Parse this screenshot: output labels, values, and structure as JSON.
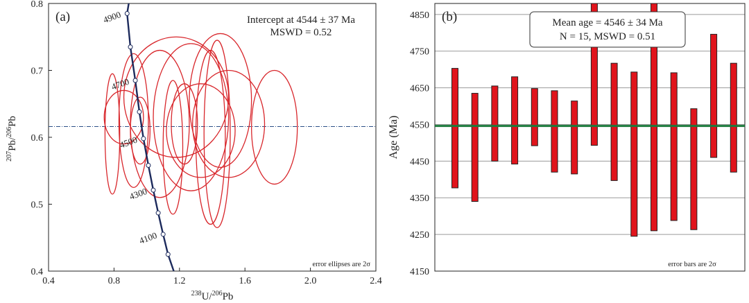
{
  "chart_data": [
    {
      "panel_label": "(a)",
      "type": "scatter",
      "subtype": "concordia-ellipses",
      "annotation": [
        "Intercept at 4544 ± 37 Ma",
        "MSWD = 0.52"
      ],
      "note": "error ellipses are 2σ",
      "xlabel": {
        "pre": "238",
        "a": "U/",
        "sup": "206",
        "b": "Pb"
      },
      "ylabel": {
        "sup1": "207",
        "a": "Pb/",
        "sup2": "206",
        "b": "Pb"
      },
      "xlim": [
        0.4,
        2.4
      ],
      "ylim": [
        0.4,
        0.8
      ],
      "xticks": [
        "0.4",
        "0.8",
        "1.2",
        "1.6",
        "2.0",
        "2.4"
      ],
      "yticks": [
        "0.4",
        "0.5",
        "0.6",
        "0.7",
        "0.8"
      ],
      "intercept_line_y": 0.616,
      "concordia": [
        [
          0.89,
          0.8
        ],
        [
          0.88,
          0.785
        ],
        [
          0.9,
          0.735
        ],
        [
          0.93,
          0.685
        ],
        [
          0.955,
          0.638
        ],
        [
          0.98,
          0.598
        ],
        [
          1.01,
          0.558
        ],
        [
          1.04,
          0.521
        ],
        [
          1.07,
          0.487
        ],
        [
          1.1,
          0.455
        ],
        [
          1.13,
          0.425
        ],
        [
          1.165,
          0.4
        ]
      ],
      "age_markers": [
        {
          "label": "4900",
          "x": 0.88,
          "y": 0.785
        },
        {
          "label": "4700",
          "x": 0.93,
          "y": 0.685
        },
        {
          "label": "4500",
          "x": 0.98,
          "y": 0.598
        },
        {
          "label": "4300",
          "x": 1.04,
          "y": 0.521
        },
        {
          "label": "4100",
          "x": 1.1,
          "y": 0.455
        }
      ],
      "ellipses": [
        {
          "x": 0.79,
          "y": 0.605,
          "rx": 0.045,
          "ry": 0.09
        },
        {
          "x": 0.86,
          "y": 0.63,
          "rx": 0.12,
          "ry": 0.04
        },
        {
          "x": 0.92,
          "y": 0.625,
          "rx": 0.09,
          "ry": 0.1
        },
        {
          "x": 0.96,
          "y": 0.61,
          "rx": 0.06,
          "ry": 0.05
        },
        {
          "x": 1.08,
          "y": 0.62,
          "rx": 0.18,
          "ry": 0.11
        },
        {
          "x": 1.16,
          "y": 0.585,
          "rx": 0.06,
          "ry": 0.1
        },
        {
          "x": 1.18,
          "y": 0.66,
          "rx": 0.32,
          "ry": 0.09
        },
        {
          "x": 1.23,
          "y": 0.62,
          "rx": 0.08,
          "ry": 0.06
        },
        {
          "x": 1.27,
          "y": 0.63,
          "rx": 0.23,
          "ry": 0.11
        },
        {
          "x": 1.33,
          "y": 0.61,
          "rx": 0.21,
          "ry": 0.07
        },
        {
          "x": 1.39,
          "y": 0.6,
          "rx": 0.09,
          "ry": 0.13
        },
        {
          "x": 1.43,
          "y": 0.605,
          "rx": 0.08,
          "ry": 0.14
        },
        {
          "x": 1.45,
          "y": 0.655,
          "rx": 0.19,
          "ry": 0.1
        },
        {
          "x": 1.5,
          "y": 0.62,
          "rx": 0.22,
          "ry": 0.08
        },
        {
          "x": 1.78,
          "y": 0.615,
          "rx": 0.14,
          "ry": 0.085
        }
      ]
    },
    {
      "panel_label": "(b)",
      "type": "bar",
      "subtype": "floating-error-bars",
      "annotation": [
        "Mean age = 4546 ± 34 Ma",
        "N = 15, MSWD = 0.51"
      ],
      "note": "error bars are 2σ",
      "ylabel": "Age (Ma)",
      "ylim": [
        4150,
        4880
      ],
      "yticks": [
        4150,
        4250,
        4350,
        4450,
        4550,
        4650,
        4750,
        4850
      ],
      "mean": 4546,
      "bars": [
        [
          4377,
          4703
        ],
        [
          4340,
          4635
        ],
        [
          4450,
          4655
        ],
        [
          4442,
          4680
        ],
        [
          4492,
          4648
        ],
        [
          4420,
          4642
        ],
        [
          4415,
          4614
        ],
        [
          4493,
          4880
        ],
        [
          4397,
          4717
        ],
        [
          4245,
          4693
        ],
        [
          4260,
          4880
        ],
        [
          4288,
          4691
        ],
        [
          4263,
          4593
        ],
        [
          4460,
          4796
        ],
        [
          4420,
          4717
        ]
      ]
    }
  ]
}
